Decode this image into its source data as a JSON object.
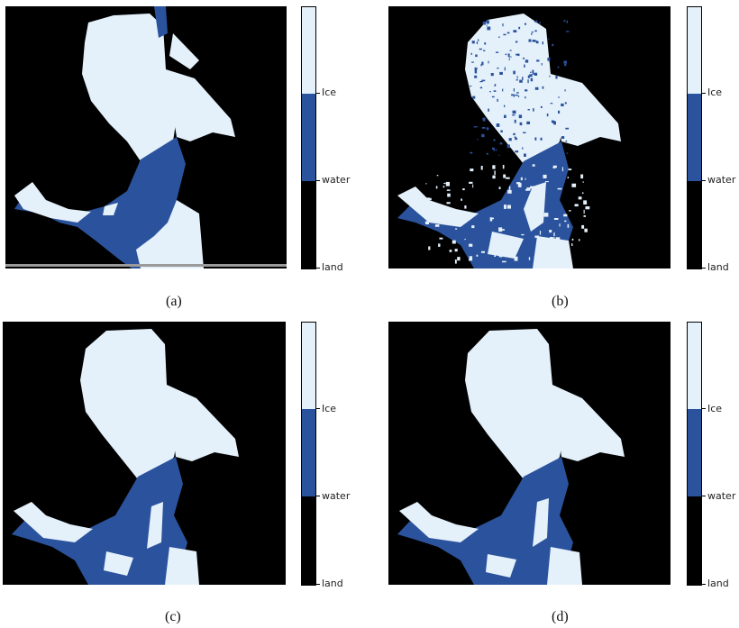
{
  "colors": {
    "ice": "#e4f1fb",
    "water": "#2b529c",
    "land": "#000000"
  },
  "colorbar": {
    "labels": [
      "Ice",
      "water",
      "land"
    ]
  },
  "panels": [
    {
      "caption": "(a)",
      "variant": "ground-truth"
    },
    {
      "caption": "(b)",
      "variant": "noisy"
    },
    {
      "caption": "(c)",
      "variant": "smooth"
    },
    {
      "caption": "(d)",
      "variant": "smooth"
    }
  ]
}
